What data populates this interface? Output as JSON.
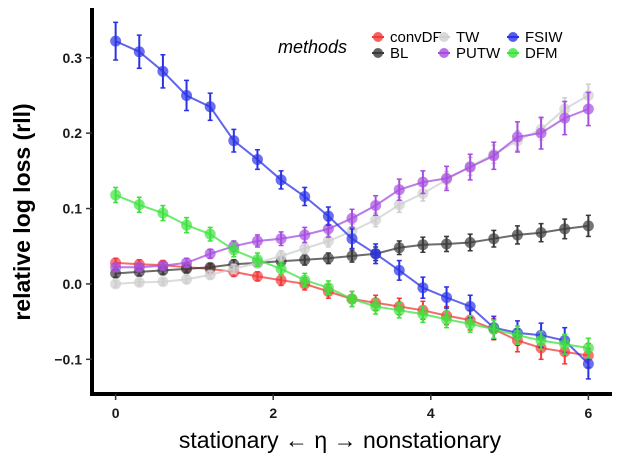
{
  "chart_data": {
    "type": "line",
    "xlabel": "stationary ← η → nonstationary",
    "ylabel": "relative log loss (rll)",
    "xlim": [
      -0.3,
      6.3
    ],
    "ylim": [
      -0.146,
      0.366
    ],
    "xticks": [
      0,
      2,
      4,
      6
    ],
    "yticks": [
      -0.1,
      0.0,
      0.1,
      0.2,
      0.3
    ],
    "ytick_labels": [
      "−0.1",
      "0.0",
      "0.1",
      "0.2",
      "0.3"
    ],
    "grid": false,
    "legend": {
      "title": "methods",
      "position": "top-right"
    },
    "x": [
      0,
      0.3,
      0.6,
      0.9,
      1.2,
      1.5,
      1.8,
      2.1,
      2.4,
      2.7,
      3.0,
      3.3,
      3.6,
      3.9,
      4.2,
      4.5,
      4.8,
      5.1,
      5.4,
      5.7,
      6.0
    ],
    "series": [
      {
        "name": "convDF",
        "color": "#f23a3a",
        "values": [
          0.028,
          0.026,
          0.025,
          0.022,
          0.02,
          0.016,
          0.01,
          0.005,
          0.0,
          -0.01,
          -0.02,
          -0.025,
          -0.03,
          -0.035,
          -0.042,
          -0.048,
          -0.06,
          -0.075,
          -0.085,
          -0.09,
          -0.095
        ],
        "errors": [
          0.006,
          0.006,
          0.006,
          0.006,
          0.006,
          0.006,
          0.006,
          0.007,
          0.008,
          0.009,
          0.01,
          0.01,
          0.011,
          0.012,
          0.012,
          0.013,
          0.014,
          0.015,
          0.015,
          0.016,
          0.016
        ]
      },
      {
        "name": "BL",
        "color": "#3a3a3a",
        "values": [
          0.014,
          0.016,
          0.018,
          0.02,
          0.022,
          0.026,
          0.028,
          0.03,
          0.032,
          0.034,
          0.037,
          0.04,
          0.048,
          0.052,
          0.053,
          0.055,
          0.06,
          0.065,
          0.068,
          0.073,
          0.077
        ],
        "errors": [
          0.005,
          0.005,
          0.005,
          0.005,
          0.005,
          0.006,
          0.006,
          0.006,
          0.007,
          0.007,
          0.008,
          0.009,
          0.009,
          0.01,
          0.01,
          0.011,
          0.011,
          0.012,
          0.012,
          0.013,
          0.014
        ]
      },
      {
        "name": "TW",
        "color": "#cfcfcf",
        "values": [
          0.0,
          0.002,
          0.003,
          0.006,
          0.012,
          0.02,
          0.028,
          0.037,
          0.047,
          0.057,
          0.07,
          0.085,
          0.105,
          0.12,
          0.138,
          0.156,
          0.172,
          0.19,
          0.205,
          0.232,
          0.25
        ],
        "errors": [
          0.004,
          0.004,
          0.004,
          0.005,
          0.005,
          0.006,
          0.006,
          0.007,
          0.007,
          0.008,
          0.009,
          0.009,
          0.01,
          0.01,
          0.011,
          0.012,
          0.012,
          0.013,
          0.014,
          0.015,
          0.015
        ]
      },
      {
        "name": "PUTW",
        "color": "#a64ee0",
        "values": [
          0.022,
          0.022,
          0.024,
          0.028,
          0.04,
          0.05,
          0.057,
          0.06,
          0.065,
          0.073,
          0.087,
          0.104,
          0.125,
          0.135,
          0.14,
          0.155,
          0.17,
          0.195,
          0.2,
          0.22,
          0.232
        ],
        "errors": [
          0.005,
          0.005,
          0.005,
          0.006,
          0.006,
          0.007,
          0.008,
          0.009,
          0.01,
          0.011,
          0.012,
          0.013,
          0.014,
          0.015,
          0.016,
          0.017,
          0.018,
          0.02,
          0.021,
          0.022,
          0.022
        ]
      },
      {
        "name": "FSIW",
        "color": "#2a32e6",
        "values": [
          0.322,
          0.308,
          0.282,
          0.25,
          0.235,
          0.19,
          0.165,
          0.138,
          0.116,
          0.09,
          0.06,
          0.04,
          0.018,
          -0.005,
          -0.018,
          -0.03,
          -0.058,
          -0.065,
          -0.068,
          -0.075,
          -0.106
        ],
        "errors": [
          0.025,
          0.022,
          0.022,
          0.02,
          0.018,
          0.015,
          0.013,
          0.012,
          0.012,
          0.012,
          0.013,
          0.013,
          0.013,
          0.014,
          0.014,
          0.015,
          0.015,
          0.016,
          0.016,
          0.017,
          0.02
        ]
      },
      {
        "name": "DFM",
        "color": "#3de33d",
        "values": [
          0.118,
          0.105,
          0.094,
          0.078,
          0.066,
          0.045,
          0.032,
          0.02,
          0.005,
          -0.005,
          -0.02,
          -0.03,
          -0.035,
          -0.04,
          -0.047,
          -0.053,
          -0.06,
          -0.068,
          -0.075,
          -0.08,
          -0.085
        ],
        "errors": [
          0.01,
          0.01,
          0.01,
          0.01,
          0.009,
          0.009,
          0.009,
          0.009,
          0.009,
          0.009,
          0.01,
          0.01,
          0.01,
          0.011,
          0.011,
          0.011,
          0.012,
          0.012,
          0.012,
          0.013,
          0.013
        ]
      }
    ]
  }
}
